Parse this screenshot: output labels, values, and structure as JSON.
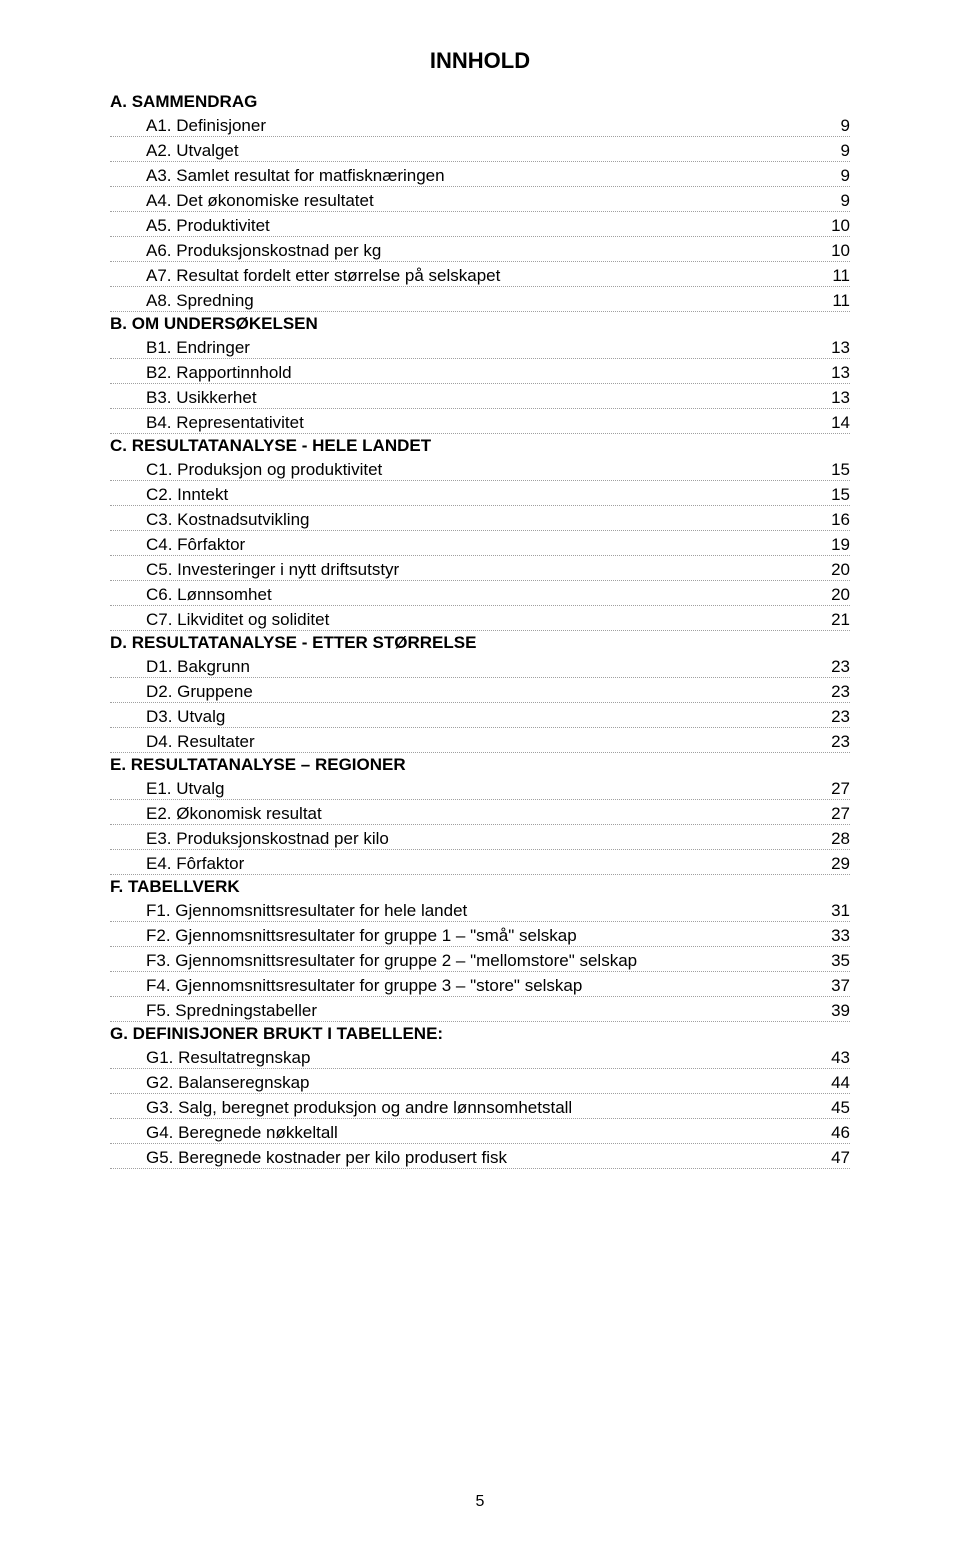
{
  "title": "INNHOLD",
  "page_number": "5",
  "sections": [
    {
      "heading": "A. SAMMENDRAG",
      "rows": [
        {
          "label": "A1. Definisjoner",
          "page": "9"
        },
        {
          "label": "A2. Utvalget",
          "page": "9"
        },
        {
          "label": "A3. Samlet resultat for matfisknæringen",
          "page": "9"
        },
        {
          "label": "A4. Det økonomiske resultatet",
          "page": "9"
        },
        {
          "label": "A5. Produktivitet",
          "page": "10"
        },
        {
          "label": "A6. Produksjonskostnad per kg",
          "page": "10"
        },
        {
          "label": "A7. Resultat fordelt etter størrelse på selskapet",
          "page": "11"
        },
        {
          "label": "A8. Spredning",
          "page": "11"
        }
      ]
    },
    {
      "heading": "B. OM UNDERSØKELSEN",
      "rows": [
        {
          "label": "B1. Endringer",
          "page": "13"
        },
        {
          "label": "B2. Rapportinnhold",
          "page": "13"
        },
        {
          "label": "B3. Usikkerhet",
          "page": "13"
        },
        {
          "label": "B4. Representativitet",
          "page": "14"
        }
      ]
    },
    {
      "heading": "C. RESULTATANALYSE - HELE LANDET",
      "rows": [
        {
          "label": "C1. Produksjon og produktivitet",
          "page": "15"
        },
        {
          "label": "C2. Inntekt",
          "page": "15"
        },
        {
          "label": "C3. Kostnadsutvikling",
          "page": "16"
        },
        {
          "label": "C4. Fôrfaktor",
          "page": "19"
        },
        {
          "label": "C5. Investeringer i nytt driftsutstyr",
          "page": "20"
        },
        {
          "label": "C6. Lønnsomhet",
          "page": "20"
        },
        {
          "label": "C7. Likviditet og soliditet",
          "page": "21"
        }
      ]
    },
    {
      "heading": "D. RESULTATANALYSE - ETTER STØRRELSE",
      "rows": [
        {
          "label": "D1. Bakgrunn",
          "page": "23"
        },
        {
          "label": "D2. Gruppene",
          "page": "23"
        },
        {
          "label": "D3. Utvalg",
          "page": "23"
        },
        {
          "label": "D4. Resultater",
          "page": "23"
        }
      ]
    },
    {
      "heading": "E. RESULTATANALYSE – REGIONER",
      "rows": [
        {
          "label": "E1. Utvalg",
          "page": "27"
        },
        {
          "label": "E2. Økonomisk resultat",
          "page": "27"
        },
        {
          "label": "E3. Produksjonskostnad per kilo",
          "page": "28"
        },
        {
          "label": "E4. Fôrfaktor",
          "page": "29"
        }
      ]
    },
    {
      "heading": "F. TABELLVERK",
      "rows": [
        {
          "label": "F1. Gjennomsnittsresultater for hele landet",
          "page": "31"
        },
        {
          "label": "F2. Gjennomsnittsresultater for gruppe 1 – \"små\" selskap",
          "page": "33"
        },
        {
          "label": "F3. Gjennomsnittsresultater for gruppe 2 – \"mellomstore\" selskap",
          "page": "35"
        },
        {
          "label": "F4. Gjennomsnittsresultater for gruppe 3 – \"store\" selskap",
          "page": "37"
        },
        {
          "label": "F5. Spredningstabeller",
          "page": "39"
        }
      ]
    },
    {
      "heading": "G. DEFINISJONER BRUKT I TABELLENE:",
      "rows": [
        {
          "label": "G1. Resultatregnskap",
          "page": "43"
        },
        {
          "label": "G2. Balanseregnskap",
          "page": "44"
        },
        {
          "label": "G3. Salg, beregnet produksjon og andre lønnsomhetstall",
          "page": "45"
        },
        {
          "label": "G4. Beregnede nøkkeltall",
          "page": "46"
        },
        {
          "label": "G5. Beregnede kostnader per kilo produsert fisk",
          "page": "47"
        }
      ]
    }
  ]
}
